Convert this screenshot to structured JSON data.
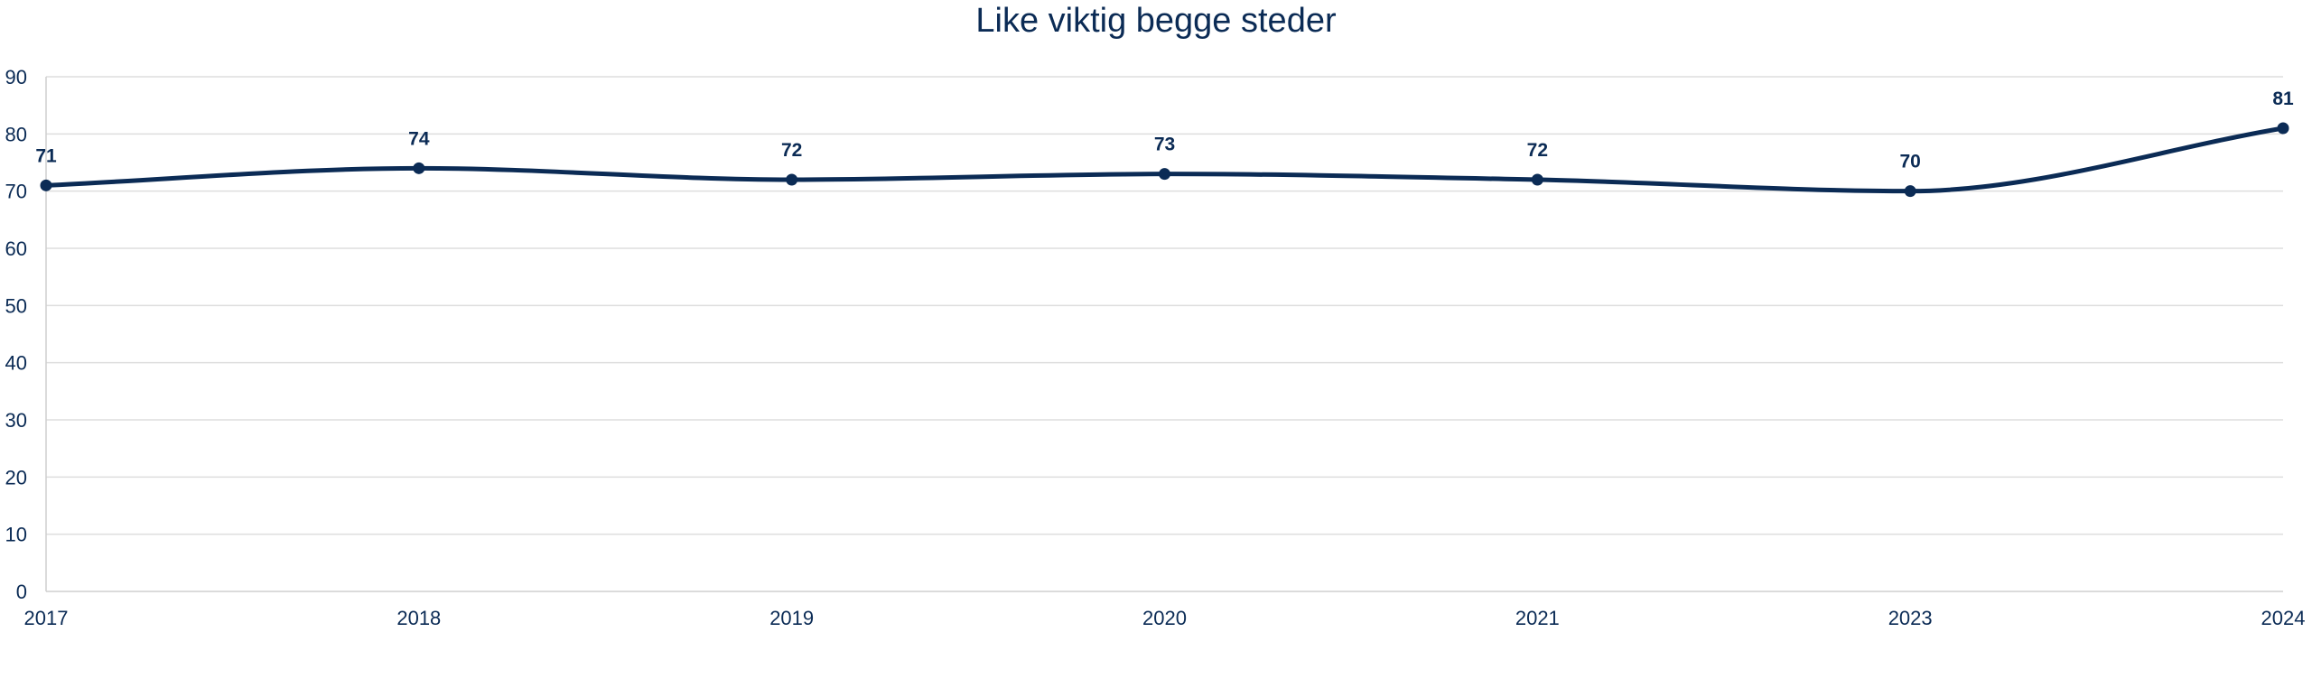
{
  "chart_data": {
    "type": "line",
    "title": "Like viktig begge steder",
    "xlabel": "",
    "ylabel": "",
    "categories": [
      "2017",
      "2018",
      "2019",
      "2020",
      "2021",
      "2023",
      "2024"
    ],
    "series": [
      {
        "values": [
          71,
          74,
          72,
          73,
          72,
          70,
          81
        ]
      }
    ],
    "ylim": [
      0,
      90
    ],
    "yticks": [
      0,
      10,
      20,
      30,
      40,
      50,
      60,
      70,
      80,
      90
    ],
    "grid": true,
    "legend": "none",
    "line_color": "#0b2b55",
    "text_color": "#0b2b55",
    "grid_color": "#dedede",
    "smooth": true,
    "data_labels": true
  }
}
